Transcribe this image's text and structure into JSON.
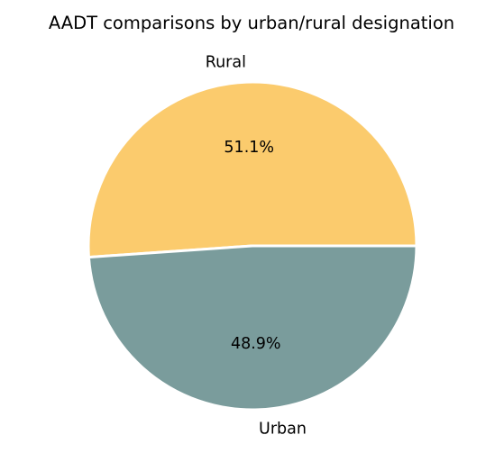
{
  "chart_data": {
    "type": "pie",
    "title": "AADT comparisons by urban/rural designation",
    "slices": [
      {
        "label": "Rural",
        "value": 51.1,
        "pct_label": "51.1%",
        "color": "#FBCB6D"
      },
      {
        "label": "Urban",
        "value": 48.9,
        "pct_label": "48.9%",
        "color": "#7A9C9C"
      }
    ],
    "edge_color": "#ffffff"
  }
}
